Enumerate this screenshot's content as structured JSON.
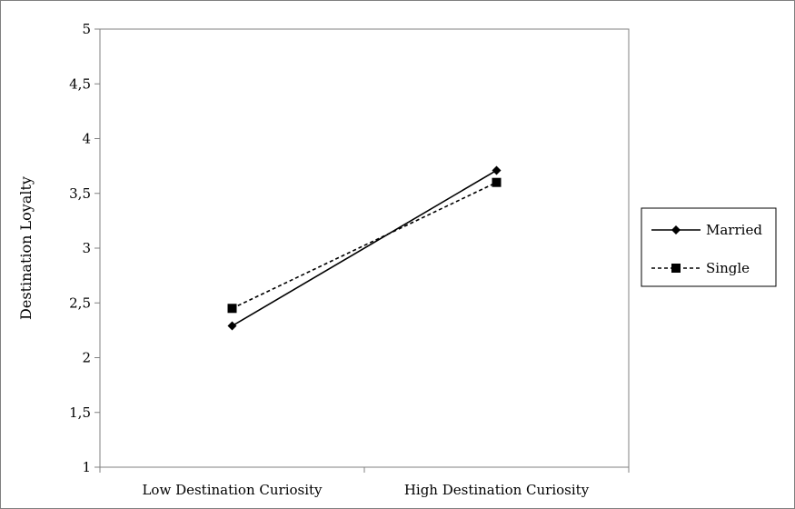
{
  "chart_data": {
    "type": "line",
    "categories": [
      "Low Destination Curiosity",
      "High Destination Curiosity"
    ],
    "ylabel": "Destination Loyalty",
    "xlabel": "",
    "ylim": [
      1,
      5
    ],
    "yticks": [
      "1",
      "1,5",
      "2",
      "2,5",
      "3",
      "3,5",
      "4",
      "4,5",
      "5"
    ],
    "ytick_values": [
      1,
      1.5,
      2,
      2.5,
      3,
      3.5,
      4,
      4.5,
      5
    ],
    "grid": false,
    "legend_position": "right",
    "series": [
      {
        "name": "Married",
        "values": [
          2.29,
          3.71
        ],
        "marker": "diamond",
        "line_style": "solid",
        "color": "#000000"
      },
      {
        "name": "Single",
        "values": [
          2.45,
          3.6
        ],
        "marker": "square",
        "line_style": "dashed",
        "color": "#000000"
      }
    ]
  }
}
